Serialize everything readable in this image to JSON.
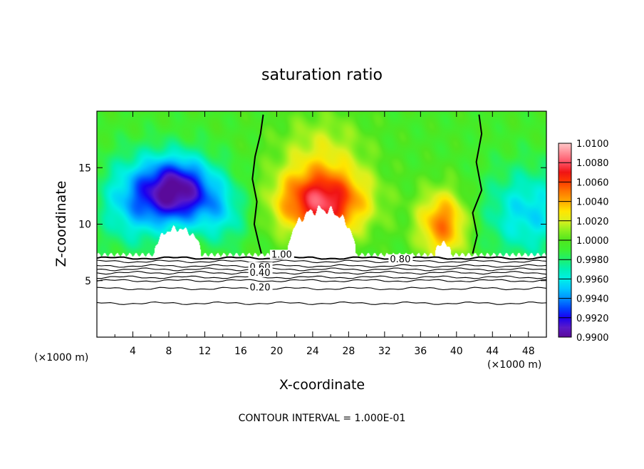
{
  "chart_data": {
    "type": "heatmap",
    "title": "saturation ratio",
    "xlabel": "X-coordinate",
    "ylabel": "Z-coordinate",
    "x_unit": "(×1000 m)",
    "x_unit_right": "(×1000 m)",
    "xlim": [
      0,
      50
    ],
    "ylim": [
      0,
      20
    ],
    "x_ticks": [
      4,
      8,
      12,
      16,
      20,
      24,
      28,
      32,
      36,
      40,
      44,
      48
    ],
    "y_ticks": [
      5,
      10,
      15
    ],
    "footer": "CONTOUR INTERVAL = 1.000E-01",
    "colorbar": {
      "min": 0.99,
      "max": 1.01,
      "labels": [
        "1.0100",
        "1.0080",
        "1.0060",
        "1.0040",
        "1.0020",
        "1.0000",
        "0.9980",
        "0.9960",
        "0.9940",
        "0.9920",
        "0.9900"
      ],
      "stops": [
        {
          "value": 0.99,
          "color": "#5a0a9a"
        },
        {
          "value": 0.991,
          "color": "#5a1ac8"
        },
        {
          "value": 0.992,
          "color": "#1a00f0"
        },
        {
          "value": 0.993,
          "color": "#0046ff"
        },
        {
          "value": 0.994,
          "color": "#0090ff"
        },
        {
          "value": 0.995,
          "color": "#00c8ff"
        },
        {
          "value": 0.996,
          "color": "#00f0e6"
        },
        {
          "value": 0.997,
          "color": "#00f0b4"
        },
        {
          "value": 0.998,
          "color": "#1ef06e"
        },
        {
          "value": 0.999,
          "color": "#3cf032"
        },
        {
          "value": 1.0,
          "color": "#50e61e"
        },
        {
          "value": 1.001,
          "color": "#8cf01e"
        },
        {
          "value": 1.002,
          "color": "#dcf01e"
        },
        {
          "value": 1.003,
          "color": "#ffe600"
        },
        {
          "value": 1.004,
          "color": "#ffaa00"
        },
        {
          "value": 1.005,
          "color": "#ff7800"
        },
        {
          "value": 1.006,
          "color": "#ff3c00"
        },
        {
          "value": 1.007,
          "color": "#f01414"
        },
        {
          "value": 1.008,
          "color": "#ff5064"
        },
        {
          "value": 1.009,
          "color": "#ff8c96"
        },
        {
          "value": 1.01,
          "color": "#ffc8c8"
        }
      ]
    },
    "cloud_base_z": 7.3,
    "contour_labels": [
      {
        "text": "1.00",
        "x": 19.4,
        "z": 7.1
      },
      {
        "text": "0.80",
        "x": 32.6,
        "z": 6.7
      },
      {
        "text": "0.60",
        "x": 17.0,
        "z": 6.0
      },
      {
        "text": "0.40",
        "x": 17.0,
        "z": 5.5
      },
      {
        "text": "0.20",
        "x": 17.0,
        "z": 4.2
      }
    ],
    "contour_levels_z": [
      7.0,
      6.7,
      6.3,
      6.0,
      5.7,
      5.3,
      5.0,
      4.3,
      3.0
    ],
    "unity_contours": [
      {
        "name": "left",
        "points": [
          [
            18.5,
            19.7
          ],
          [
            18.2,
            18
          ],
          [
            17.6,
            16
          ],
          [
            17.3,
            14
          ],
          [
            17.8,
            12
          ],
          [
            17.5,
            10
          ],
          [
            18.0,
            8.3
          ],
          [
            18.3,
            7.4
          ]
        ]
      },
      {
        "name": "right",
        "points": [
          [
            42.5,
            19.7
          ],
          [
            42.8,
            18
          ],
          [
            42.2,
            15.5
          ],
          [
            42.8,
            13
          ],
          [
            41.8,
            11
          ],
          [
            42.3,
            9
          ],
          [
            41.8,
            7.4
          ]
        ]
      }
    ],
    "features": [
      {
        "kind": "dry",
        "x": 9,
        "z": 13,
        "sx": 4,
        "sz": 3,
        "amp": -0.009
      },
      {
        "kind": "dry",
        "x": 4,
        "z": 12,
        "sx": 4,
        "sz": 4,
        "amp": -0.004
      },
      {
        "kind": "dry",
        "x": 14,
        "z": 11,
        "sx": 3,
        "sz": 3,
        "amp": -0.003
      },
      {
        "kind": "dry",
        "x": 48,
        "z": 11,
        "sx": 5,
        "sz": 4,
        "amp": -0.004
      },
      {
        "kind": "moist",
        "x": 25,
        "z": 12,
        "sx": 5,
        "sz": 3,
        "amp": 0.0085
      },
      {
        "kind": "moist",
        "x": 38.5,
        "z": 10,
        "sx": 2.8,
        "sz": 3,
        "amp": 0.0055
      },
      {
        "kind": "moist",
        "x": 25,
        "z": 17,
        "sx": 5,
        "sz": 3,
        "amp": 0.002
      }
    ],
    "blanked_hills": [
      {
        "x": 25,
        "height": 11.3,
        "halfwidth": 3.8
      },
      {
        "x": 9,
        "height": 9.6,
        "halfwidth": 2.6
      },
      {
        "x": 38.5,
        "height": 8.3,
        "halfwidth": 0.9
      }
    ]
  }
}
